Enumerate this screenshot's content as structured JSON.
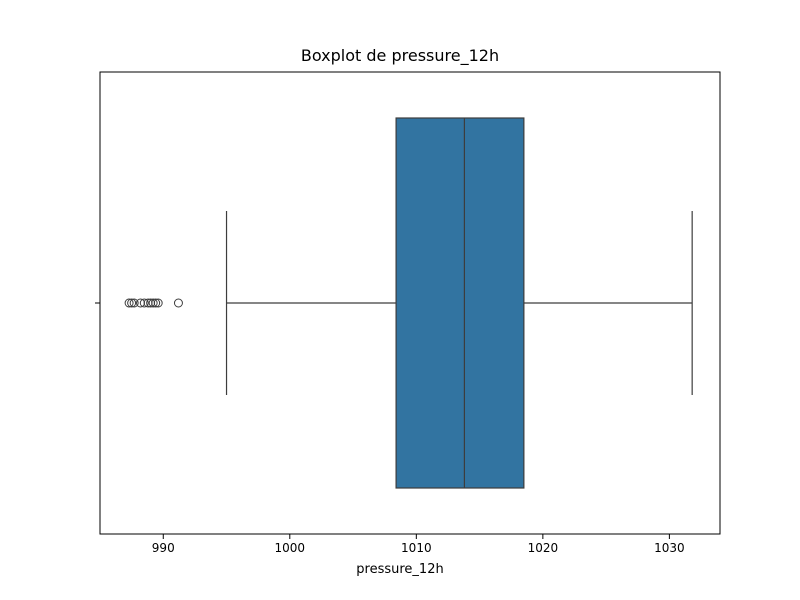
{
  "chart_data": {
    "type": "boxplot",
    "title": "Boxplot de pressure_12h",
    "xlabel": "pressure_12h",
    "ylabel": "",
    "orientation": "horizontal",
    "xlim": [
      985,
      1034
    ],
    "x_ticks": [
      990,
      1000,
      1010,
      1020,
      1030
    ],
    "grid": false,
    "box_color": "#3274a1",
    "line_color": "#3d3d3d",
    "box": {
      "whisker_low": 995.0,
      "q1": 1008.4,
      "median": 1013.8,
      "q3": 1018.5,
      "whisker_high": 1031.8
    },
    "outliers": [
      987.3,
      987.5,
      987.7,
      988.2,
      988.5,
      988.8,
      989.0,
      989.2,
      989.4,
      989.6,
      991.2
    ]
  }
}
